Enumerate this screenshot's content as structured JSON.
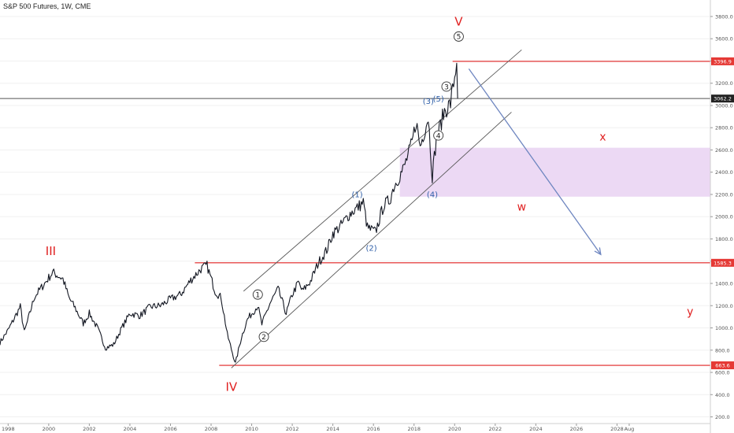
{
  "header": {
    "symbol": "S&P 500 Futures, 1W, CME"
  },
  "colors": {
    "price": "#131722",
    "red": "#e02020",
    "blue": "#2f5fa8",
    "arrow": "#6e86c0",
    "zone": "#ecd9f4",
    "channel": "#5a5a5a",
    "tag_red": "#e53935",
    "tag_dark": "#222222",
    "axis_text": "#555555",
    "grid": "#f0f0f0"
  },
  "chart_data": {
    "type": "line",
    "title": "S&P 500 Futures, 1W, CME",
    "xlabel": "",
    "ylabel": "",
    "x_ticks": [
      "1998",
      "2000",
      "2002",
      "2004",
      "2006",
      "2008",
      "2010",
      "2012",
      "2014",
      "2016",
      "2018",
      "2020",
      "2022",
      "2024",
      "2026",
      "2028",
      "Aug"
    ],
    "y_ticks": [
      200.0,
      400.0,
      600.0,
      800.0,
      1000.0,
      1200.0,
      1400.0,
      1600.0,
      1800.0,
      2000.0,
      2200.0,
      2400.0,
      2600.0,
      2800.0,
      3000.0,
      3200.0,
      3400.0,
      3600.0,
      3800.0
    ],
    "y_tick_labels": [
      "200.0",
      "400.0",
      "600.0",
      "800.0",
      "1000.0",
      "1200.0",
      "1400.0",
      "1600.0",
      "1800.0",
      "2000.0",
      "2200.0",
      "2400.0",
      "2600.0",
      "2800.0",
      "3000.0",
      "3200.0",
      "3400.0",
      "3600.0",
      "3800.0"
    ],
    "xlim": [
      1997.6,
      2032.6
    ],
    "ylim": [
      140,
      3920
    ],
    "series": [
      {
        "x": [
          1997.6,
          1998.0,
          1998.6,
          1998.8,
          1999.3,
          1999.8,
          2000.2,
          2000.7,
          2001.0,
          2001.3,
          2001.7,
          2002.0,
          2002.4,
          2002.8,
          2003.2,
          2003.6,
          2004.0,
          2004.5,
          2005.0,
          2005.5,
          2006.0,
          2006.5,
          2007.0,
          2007.5,
          2007.8,
          2008.2,
          2008.5,
          2008.8,
          2009.2,
          2009.5,
          2009.8,
          2010.3,
          2010.5,
          2010.9,
          2011.3,
          2011.7,
          2012.0,
          2012.3,
          2012.5,
          2012.9,
          2013.3,
          2013.7,
          2014.0,
          2014.4,
          2014.8,
          2015.2,
          2015.5,
          2015.7,
          2016.1,
          2016.5,
          2016.8,
          2017.0,
          2017.5,
          2017.9,
          2018.1,
          2018.3,
          2018.7,
          2018.9,
          2019.1,
          2019.5,
          2019.8,
          2020.1
        ],
        "y": [
          870,
          980,
          1190,
          960,
          1280,
          1400,
          1500,
          1440,
          1270,
          1180,
          1040,
          1130,
          1000,
          820,
          850,
          1000,
          1130,
          1110,
          1190,
          1200,
          1260,
          1300,
          1430,
          1530,
          1560,
          1330,
          1270,
          940,
          680,
          920,
          1080,
          1200,
          1030,
          1220,
          1350,
          1130,
          1300,
          1410,
          1330,
          1420,
          1590,
          1700,
          1850,
          1920,
          2020,
          2080,
          2130,
          1900,
          1860,
          2100,
          2150,
          2270,
          2440,
          2660,
          2860,
          2630,
          2900,
          2370,
          2700,
          2950,
          3020,
          3380
        ]
      }
    ],
    "horizontal_levels": [
      {
        "value": 3396.9,
        "label": "3396.9",
        "x_from": 2019.9
      },
      {
        "value": 1585.3,
        "label": "1585.3",
        "x_from": 2007.2
      },
      {
        "value": 663.6,
        "label": "663.6",
        "x_from": 2008.4
      },
      {
        "value": 3062.2,
        "label": "3062.2",
        "x_from": 1997.6
      }
    ],
    "zone": {
      "x_from": 2017.3,
      "x_to": 2032.6,
      "y_from": 2180,
      "y_to": 2620
    },
    "channel_lines": [
      {
        "x1": 2009.0,
        "y1": 640,
        "x2": 2022.8,
        "y2": 2940
      },
      {
        "x1": 2009.6,
        "y1": 1330,
        "x2": 2023.3,
        "y2": 3500
      }
    ],
    "projection_arrow": {
      "x1": 2020.7,
      "y1": 3330,
      "x2": 2027.2,
      "y2": 1660
    },
    "annotations": [
      {
        "text": "III",
        "x": 2000.1,
        "y": 1690,
        "style": "red-roman"
      },
      {
        "text": "IV",
        "x": 2009.0,
        "y": 470,
        "style": "red-roman"
      },
      {
        "text": "V",
        "x": 2020.2,
        "y": 3755,
        "style": "red-roman"
      },
      {
        "text": "w",
        "x": 2023.3,
        "y": 2090,
        "style": "red"
      },
      {
        "text": "x",
        "x": 2027.3,
        "y": 2720,
        "style": "red"
      },
      {
        "text": "y",
        "x": 2031.6,
        "y": 1150,
        "style": "red"
      },
      {
        "text": "1",
        "x": 2010.3,
        "y": 1300,
        "style": "circle"
      },
      {
        "text": "2",
        "x": 2010.6,
        "y": 920,
        "style": "circle"
      },
      {
        "text": "3",
        "x": 2019.6,
        "y": 3170,
        "style": "circle"
      },
      {
        "text": "4",
        "x": 2019.2,
        "y": 2730,
        "style": "circle"
      },
      {
        "text": "5",
        "x": 2020.2,
        "y": 3620,
        "style": "circle"
      },
      {
        "text": "(1)",
        "x": 2015.2,
        "y": 2200,
        "style": "blue"
      },
      {
        "text": "(2)",
        "x": 2015.9,
        "y": 1720,
        "style": "blue"
      },
      {
        "text": "(3)",
        "x": 2018.7,
        "y": 3040,
        "style": "blue"
      },
      {
        "text": "(4)",
        "x": 2018.9,
        "y": 2200,
        "style": "blue"
      },
      {
        "text": "(5)",
        "x": 2019.2,
        "y": 3060,
        "style": "blue"
      }
    ]
  }
}
